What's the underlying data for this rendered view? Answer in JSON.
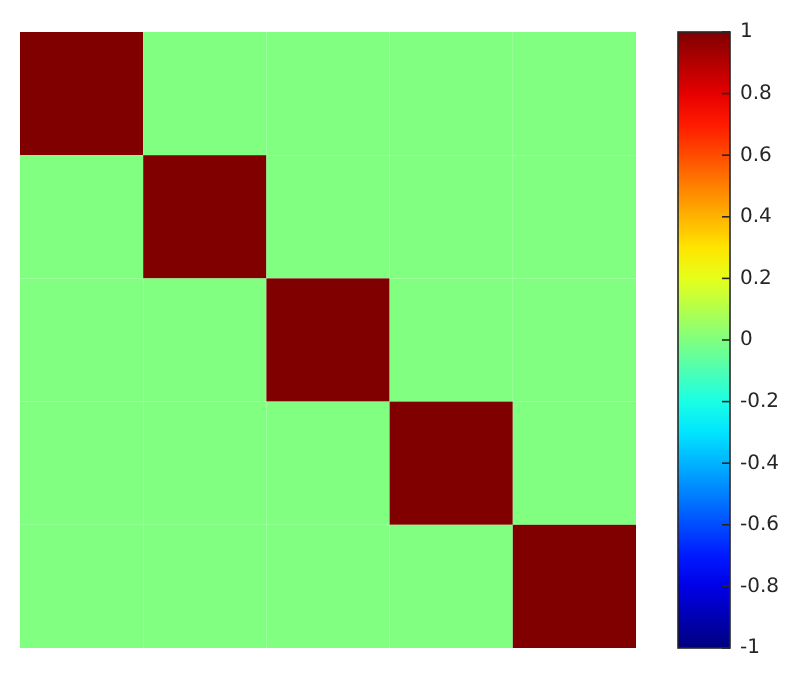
{
  "chart_data": {
    "type": "heatmap",
    "categories": [
      null,
      null,
      null,
      null,
      null
    ],
    "y_categories": [
      null,
      null,
      null,
      null,
      null
    ],
    "cells": [
      [
        1,
        0,
        0,
        0,
        0
      ],
      [
        0,
        1,
        0,
        0,
        0
      ],
      [
        0,
        0,
        1,
        0,
        0
      ],
      [
        0,
        0,
        0,
        1,
        0
      ],
      [
        0,
        0,
        0,
        0,
        1
      ]
    ],
    "clim": [
      -1,
      1
    ],
    "cticks": [
      -1,
      -0.8,
      -0.6,
      -0.4,
      -0.2,
      0,
      0.2,
      0.4,
      0.6,
      0.8,
      1
    ],
    "tick_labels": false
  }
}
